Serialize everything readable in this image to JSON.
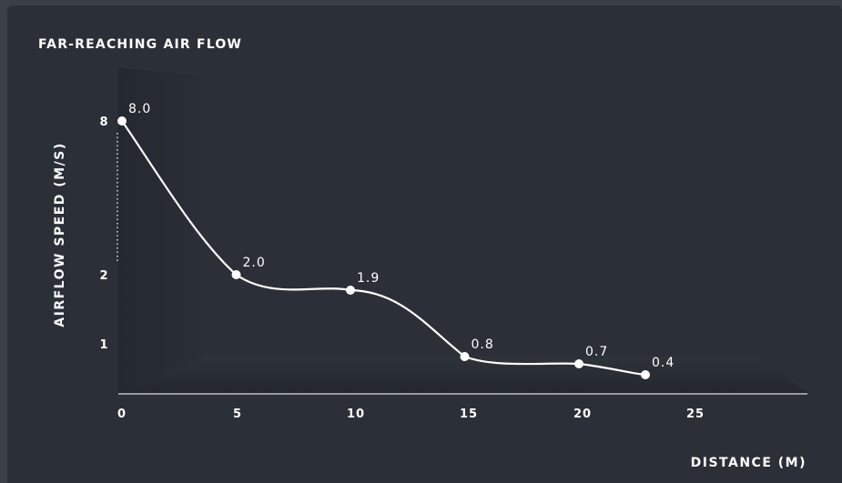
{
  "chart_data": {
    "type": "line",
    "title": "FAR-REACHING AIR FLOW",
    "xlabel": "DISTANCE (M)",
    "ylabel": "AIRFLOW SPEED (M/S)",
    "x_ticks": [
      "0",
      "5",
      "10",
      "15",
      "20",
      "25"
    ],
    "y_ticks": [
      "1",
      "2",
      "8"
    ],
    "y_scale": "broken",
    "grid": false,
    "legend": "none",
    "series": [
      {
        "x": [
          0,
          5,
          10,
          15,
          20,
          23
        ],
        "values": [
          8.0,
          2.0,
          1.9,
          0.8,
          0.7,
          0.4
        ],
        "labels": [
          "8.0",
          "2.0",
          "1.9",
          "0.8",
          "0.7",
          "0.4"
        ]
      }
    ],
    "colors": {
      "line": "#ffffff",
      "axis": "#d8dade",
      "text": "#ffffff",
      "backdrop": "#22262d"
    }
  }
}
